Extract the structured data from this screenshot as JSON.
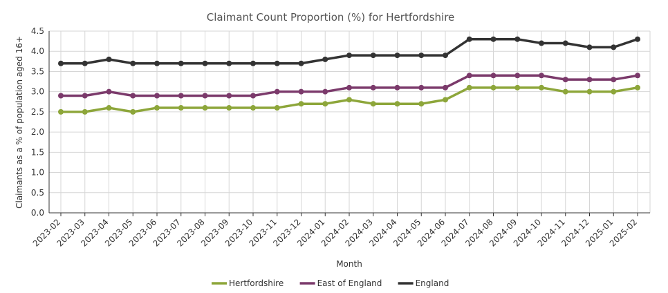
{
  "chart_data": {
    "type": "line",
    "title": "Claimant Count Proportion (%) for Hertfordshire",
    "xlabel": "Month",
    "ylabel": "Claimants as a % of population aged 16+",
    "ylim": [
      0,
      4.5
    ],
    "yticks": [
      0.0,
      0.5,
      1.0,
      1.5,
      2.0,
      2.5,
      3.0,
      3.5,
      4.0,
      4.5
    ],
    "grid": true,
    "legend_position": "bottom",
    "categories": [
      "2023-02",
      "2023-03",
      "2023-04",
      "2023-05",
      "2023-06",
      "2023-07",
      "2023-08",
      "2023-09",
      "2023-10",
      "2023-11",
      "2023-12",
      "2024-01",
      "2024-02",
      "2024-03",
      "2024-04",
      "2024-05",
      "2024-06",
      "2024-07",
      "2024-08",
      "2024-09",
      "2024-10",
      "2024-11",
      "2024-12",
      "2025-01",
      "2025-02"
    ],
    "series": [
      {
        "name": "Hertfordshire",
        "color": "#8da63a",
        "values": [
          2.5,
          2.5,
          2.6,
          2.5,
          2.6,
          2.6,
          2.6,
          2.6,
          2.6,
          2.6,
          2.7,
          2.7,
          2.8,
          2.7,
          2.7,
          2.7,
          2.8,
          3.1,
          3.1,
          3.1,
          3.1,
          3.0,
          3.0,
          3.0,
          3.1
        ]
      },
      {
        "name": "East of England",
        "color": "#7b3a6b",
        "values": [
          2.9,
          2.9,
          3.0,
          2.9,
          2.9,
          2.9,
          2.9,
          2.9,
          2.9,
          3.0,
          3.0,
          3.0,
          3.1,
          3.1,
          3.1,
          3.1,
          3.1,
          3.4,
          3.4,
          3.4,
          3.4,
          3.3,
          3.3,
          3.3,
          3.4
        ]
      },
      {
        "name": "England",
        "color": "#333333",
        "values": [
          3.7,
          3.7,
          3.8,
          3.7,
          3.7,
          3.7,
          3.7,
          3.7,
          3.7,
          3.7,
          3.7,
          3.8,
          3.9,
          3.9,
          3.9,
          3.9,
          3.9,
          4.3,
          4.3,
          4.3,
          4.2,
          4.2,
          4.1,
          4.1,
          4.3
        ]
      }
    ]
  }
}
